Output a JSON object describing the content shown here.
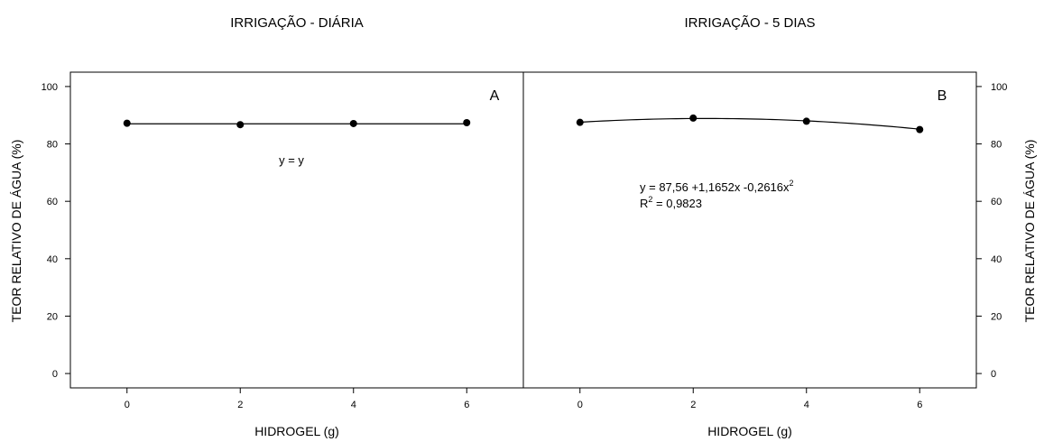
{
  "chart_data": [
    {
      "type": "line",
      "panel_id": "A",
      "title": "IRRIGAÇÃO - DIÁRIA",
      "xlabel": "HIDROGEL (g)",
      "ylabel": "TEOR RELATIVO DE ÁGUA (%)",
      "xlim": [
        -1,
        7
      ],
      "ylim": [
        -5,
        105
      ],
      "xticks": [
        0,
        2,
        4,
        6
      ],
      "yticks": [
        0,
        20,
        40,
        60,
        80,
        100
      ],
      "ylabel_side": "left",
      "grid": false,
      "x": [
        0,
        2,
        4,
        6
      ],
      "values": [
        87.2,
        86.7,
        87.1,
        87.4
      ],
      "fit": {
        "kind": "constant",
        "value": 87.0
      },
      "annotation": {
        "equation": "y = y"
      }
    },
    {
      "type": "line",
      "panel_id": "B",
      "title": "IRRIGAÇÃO - 5 DIAS",
      "xlabel": "HIDROGEL (g)",
      "ylabel": "TEOR RELATIVO DE ÁGUA (%)",
      "xlim": [
        -1,
        7
      ],
      "ylim": [
        -5,
        105
      ],
      "xticks": [
        0,
        2,
        4,
        6
      ],
      "yticks": [
        0,
        20,
        40,
        60,
        80,
        100
      ],
      "ylabel_side": "right",
      "grid": false,
      "x": [
        0,
        2,
        4,
        6
      ],
      "values": [
        87.5,
        89.0,
        87.9,
        85.0
      ],
      "fit": {
        "kind": "quadratic",
        "coefficients": [
          87.56,
          1.1652,
          -0.2616
        ]
      },
      "annotation": {
        "equation_main": "y = 87,56 +1,1652x -0,2616x",
        "equation_sup": "2",
        "r2_prefix": "R",
        "r2_sup": "2",
        "r2_value": " = 0,9823"
      }
    }
  ]
}
